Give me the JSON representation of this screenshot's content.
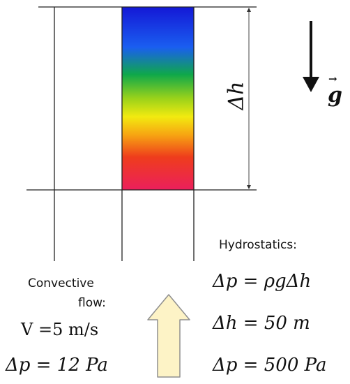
{
  "diagram": {
    "colors": {
      "line": "#222222",
      "gradient": [
        "#1418d6",
        "#1a5ef0",
        "#0fa84a",
        "#9ad21a",
        "#f2ea10",
        "#f7a412",
        "#ee3d1c",
        "#ec1f5c"
      ],
      "arrow_fill": "#fdf3c6",
      "arrow_stroke": "#8f8f8f"
    },
    "gravity": {
      "symbol": "g",
      "arrow_mark": "→",
      "icon": "down-arrow-icon"
    },
    "height_label": "Δh",
    "hydrostatics": {
      "title": "Hydrostatics:",
      "eq1": "Δp = ρgΔh",
      "eq2": "Δh = 50 m",
      "eq3": "Δp = 500 Pa"
    },
    "convective": {
      "title_line1": "Convective",
      "title_line2": "flow:",
      "velocity": "V =5 m/s",
      "pressure": "Δp = 12 Pa",
      "icon": "up-arrow-icon"
    }
  }
}
